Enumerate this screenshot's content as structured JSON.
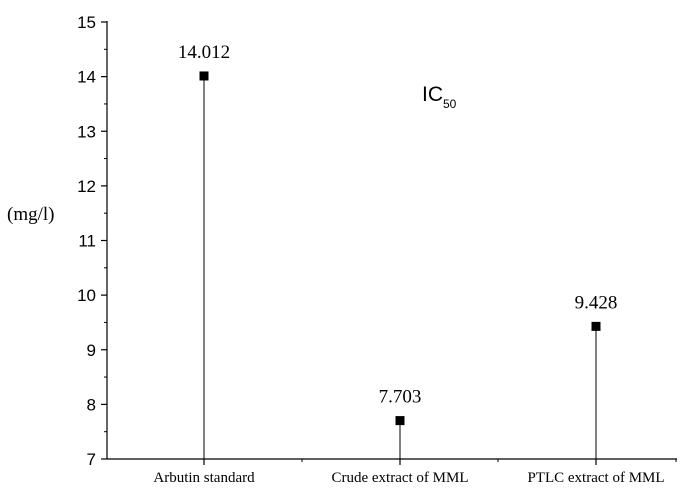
{
  "chart_data": {
    "type": "scatter",
    "style": "stem-lollipop",
    "ylabel": "(mg/l)",
    "annotation": {
      "main": "IC",
      "subscript": "50"
    },
    "ylim": [
      7,
      15
    ],
    "yticks": [
      7,
      8,
      9,
      10,
      11,
      12,
      13,
      14,
      15
    ],
    "y_minor_step": 0.5,
    "categories": [
      "Arbutin standard",
      "Crude extract of MML",
      "PTLC extract of MML"
    ],
    "values": [
      14.012,
      7.703,
      9.428
    ],
    "data_labels": [
      "14.012",
      "7.703",
      "9.428"
    ],
    "grid": false,
    "legend": "none",
    "colors": {
      "marker": "#000000",
      "axis": "#000000"
    }
  }
}
